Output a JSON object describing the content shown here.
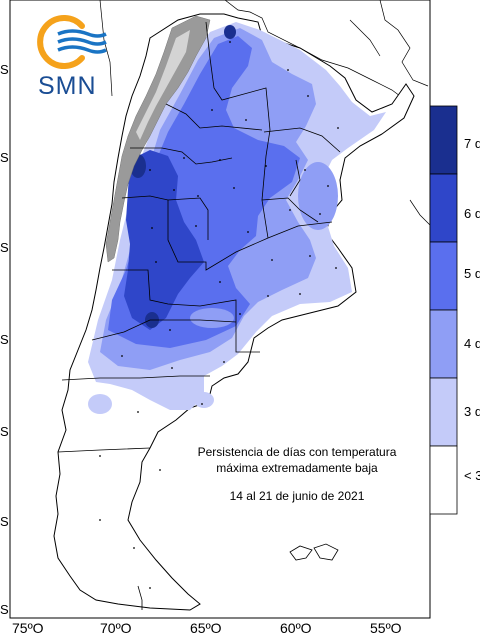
{
  "logo": {
    "text": "SMN"
  },
  "annotation": {
    "line1": "Persistencia de días con temperatura",
    "line2": "máxima extremadamente baja",
    "dates": "14 al 21 de junio de 2021"
  },
  "axes": {
    "x_ticks": [
      "75ºO",
      "70ºO",
      "65ºO",
      "60ºO",
      "55ºO"
    ],
    "y_ticks": [
      "S",
      "S",
      "S",
      "S",
      "S",
      "S",
      "S"
    ]
  },
  "legend": {
    "labels": [
      "7 d",
      "6 d",
      "5 d",
      "4 d",
      "3 d",
      "< 3"
    ],
    "colors": [
      "#1a2f8f",
      "#2f46c9",
      "#5a6fee",
      "#8f9ef5",
      "#c4cbf9",
      "#ffffff"
    ]
  },
  "colors": {
    "land": "#ffffff",
    "relief": "#9a9a9a",
    "border": "#000000",
    "logo_orange": "#f5a21b",
    "logo_blue": "#1a74c4"
  }
}
